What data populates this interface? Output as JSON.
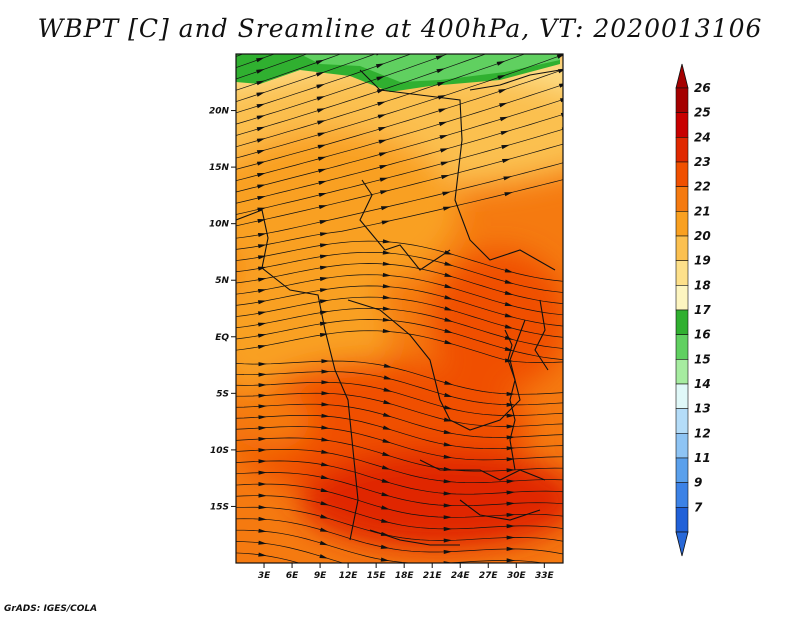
{
  "title": "WBPT [C] and Sreamline at 400hPa, VT: 2020013106",
  "credit": "GrADS: IGES/COLA",
  "map": {
    "lon_range": [
      0,
      35
    ],
    "lat_range": [
      -20,
      25
    ],
    "lat_ticks": [
      {
        "value": 20,
        "label": "20N"
      },
      {
        "value": 15,
        "label": "15N"
      },
      {
        "value": 10,
        "label": "10N"
      },
      {
        "value": 5,
        "label": "5N"
      },
      {
        "value": 0,
        "label": "EQ"
      },
      {
        "value": -5,
        "label": "5S"
      },
      {
        "value": -10,
        "label": "10S"
      },
      {
        "value": -15,
        "label": "15S"
      }
    ],
    "lon_ticks": [
      {
        "value": 3,
        "label": "3E"
      },
      {
        "value": 6,
        "label": "6E"
      },
      {
        "value": 9,
        "label": "9E"
      },
      {
        "value": 12,
        "label": "12E"
      },
      {
        "value": 15,
        "label": "15E"
      },
      {
        "value": 18,
        "label": "18E"
      },
      {
        "value": 21,
        "label": "21E"
      },
      {
        "value": 24,
        "label": "24E"
      },
      {
        "value": 27,
        "label": "27E"
      },
      {
        "value": 30,
        "label": "30E"
      },
      {
        "value": 33,
        "label": "33E"
      }
    ]
  },
  "colorbar": {
    "levels": [
      {
        "label": "26",
        "color": "#a50000"
      },
      {
        "label": "25",
        "color": "#c80000"
      },
      {
        "label": "24",
        "color": "#e02800"
      },
      {
        "label": "23",
        "color": "#f05000"
      },
      {
        "label": "22",
        "color": "#f57a10"
      },
      {
        "label": "21",
        "color": "#f9a020"
      },
      {
        "label": "20",
        "color": "#fbc050"
      },
      {
        "label": "19",
        "color": "#fde08a"
      },
      {
        "label": "18",
        "color": "#fdf5c0"
      },
      {
        "label": "17",
        "color": "#30b030"
      },
      {
        "label": "16",
        "color": "#60d060"
      },
      {
        "label": "15",
        "color": "#a6eca0"
      },
      {
        "label": "14",
        "color": "#e0f8f8"
      },
      {
        "label": "13",
        "color": "#b4dcf8"
      },
      {
        "label": "12",
        "color": "#8ec4f4"
      },
      {
        "label": "11",
        "color": "#5aa0ec"
      },
      {
        "label": "9",
        "color": "#3c82e6"
      },
      {
        "label": "7",
        "color": "#2060d8"
      }
    ],
    "bottom_color": "#2868d8"
  }
}
